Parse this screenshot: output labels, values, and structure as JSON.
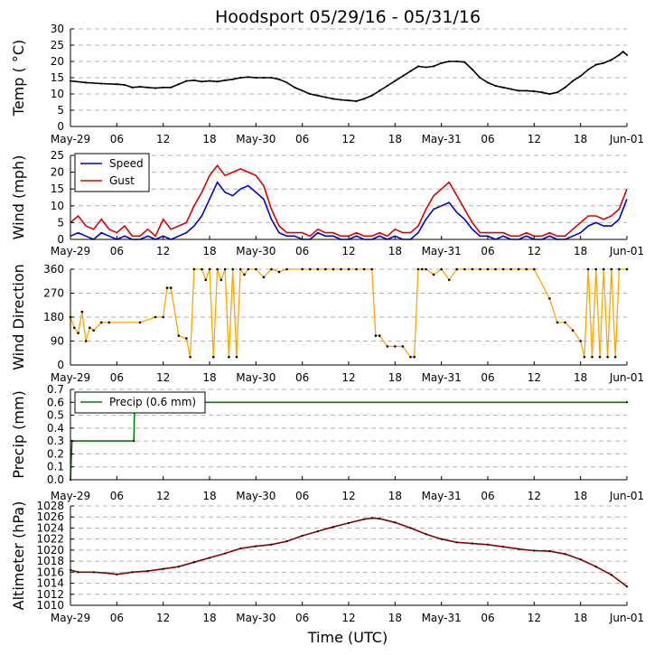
{
  "figure": {
    "title": "Hoodsport 05/29/16 - 05/31/16",
    "xlabel": "Time (UTC)"
  },
  "chart_data": [
    {
      "type": "line",
      "ylabel": "Temp ( °C)",
      "ylim": [
        0,
        30
      ],
      "yticks": [
        0,
        5,
        10,
        15,
        20,
        25,
        30
      ],
      "xlim": [
        0,
        72
      ],
      "x_tick_labels": [
        "May-29",
        "06",
        "12",
        "18",
        "May-30",
        "06",
        "12",
        "18",
        "May-31",
        "06",
        "12",
        "18",
        "Jun-01"
      ],
      "x_tick_hours": [
        0,
        6,
        12,
        18,
        24,
        30,
        36,
        42,
        48,
        54,
        60,
        66,
        72
      ],
      "grid": "horizontal dashed",
      "series": [
        {
          "color": "#000000",
          "marker": "dot",
          "x": [
            0,
            2,
            4,
            6,
            7,
            8,
            9,
            10,
            11,
            12,
            13,
            14,
            15,
            16,
            17,
            18,
            19,
            20,
            21,
            22,
            23,
            24,
            25,
            26,
            27,
            28,
            29,
            30,
            31,
            32,
            33,
            34,
            35,
            36,
            37,
            38,
            39,
            40,
            41,
            42,
            43,
            44,
            45,
            46,
            47,
            48,
            49,
            50,
            51,
            52,
            53,
            54,
            55,
            56,
            57,
            58,
            59,
            60,
            61,
            62,
            63,
            64,
            65,
            66,
            67,
            68,
            69,
            70,
            71,
            71.5,
            72
          ],
          "y": [
            14,
            13.5,
            13.2,
            13,
            12.8,
            12,
            12.2,
            12,
            11.8,
            12,
            12,
            13,
            14,
            14.2,
            13.8,
            14,
            13.8,
            14.2,
            14.5,
            15,
            15.2,
            15,
            15,
            15,
            14.5,
            13.5,
            12,
            11,
            10,
            9.5,
            9,
            8.5,
            8.2,
            8,
            7.8,
            8.5,
            9.5,
            11,
            12.5,
            14,
            15.5,
            17,
            18.5,
            18.2,
            18.5,
            19.5,
            20,
            20,
            19.8,
            17.5,
            15,
            13.5,
            12.5,
            12,
            11.5,
            11,
            11,
            10.8,
            10.5,
            10,
            10.5,
            12,
            14,
            15.5,
            17.5,
            19,
            19.5,
            20.5,
            22,
            23,
            22
          ]
        }
      ]
    },
    {
      "type": "line",
      "ylabel": "Wind (mph)",
      "ylim": [
        0,
        25
      ],
      "yticks": [
        0,
        5,
        10,
        15,
        20,
        25
      ],
      "xlim": [
        0,
        72
      ],
      "x_tick_labels": [
        "May-29",
        "06",
        "12",
        "18",
        "May-30",
        "06",
        "12",
        "18",
        "May-31",
        "06",
        "12",
        "18",
        "Jun-01"
      ],
      "x_tick_hours": [
        0,
        6,
        12,
        18,
        24,
        30,
        36,
        42,
        48,
        54,
        60,
        66,
        72
      ],
      "grid": "horizontal dashed",
      "legend": {
        "placement": "top-left",
        "entries": [
          {
            "label": "Speed",
            "color": "#0000cc"
          },
          {
            "label": "Gust",
            "color": "#dd0000"
          }
        ]
      },
      "series": [
        {
          "name": "Speed",
          "color": "#0000cc",
          "x": [
            0,
            1,
            2,
            3,
            4,
            5,
            6,
            7,
            8,
            9,
            10,
            11,
            12,
            13,
            14,
            15,
            16,
            17,
            18,
            19,
            20,
            21,
            22,
            23,
            24,
            25,
            26,
            27,
            28,
            29,
            30,
            31,
            32,
            33,
            34,
            35,
            36,
            37,
            38,
            39,
            40,
            41,
            42,
            43,
            44,
            45,
            46,
            47,
            48,
            49,
            50,
            51,
            52,
            53,
            54,
            55,
            56,
            57,
            58,
            59,
            60,
            61,
            62,
            63,
            64,
            65,
            66,
            67,
            68,
            69,
            70,
            71,
            72
          ],
          "y": [
            1,
            2,
            1,
            0,
            2,
            1,
            0,
            1,
            0,
            0,
            1,
            0,
            1,
            0,
            1,
            2,
            4,
            7,
            12,
            17,
            14,
            13,
            15,
            16,
            14,
            12,
            6,
            2,
            1,
            1,
            0,
            0,
            2,
            1,
            1,
            0,
            0,
            1,
            0,
            0,
            1,
            0,
            1,
            0,
            0,
            2,
            6,
            9,
            10,
            11,
            8,
            6,
            3,
            1,
            1,
            0,
            1,
            0,
            0,
            1,
            0,
            0,
            1,
            0,
            0,
            1,
            2,
            4,
            5,
            4,
            4,
            6,
            12
          ]
        },
        {
          "name": "Gust",
          "color": "#dd0000",
          "x": [
            0,
            1,
            2,
            3,
            4,
            5,
            6,
            7,
            8,
            9,
            10,
            11,
            12,
            13,
            14,
            15,
            16,
            17,
            18,
            19,
            20,
            21,
            22,
            23,
            24,
            25,
            26,
            27,
            28,
            29,
            30,
            31,
            32,
            33,
            34,
            35,
            36,
            37,
            38,
            39,
            40,
            41,
            42,
            43,
            44,
            45,
            46,
            47,
            48,
            49,
            50,
            51,
            52,
            53,
            54,
            55,
            56,
            57,
            58,
            59,
            60,
            61,
            62,
            63,
            64,
            65,
            66,
            67,
            68,
            69,
            70,
            71,
            72
          ],
          "y": [
            5,
            7,
            4,
            3,
            6,
            3,
            2,
            4,
            1,
            1,
            3,
            1,
            6,
            3,
            4,
            5,
            10,
            14,
            19,
            22,
            19,
            20,
            21,
            20,
            19,
            16,
            9,
            4,
            2,
            2,
            2,
            1,
            3,
            2,
            2,
            1,
            1,
            2,
            1,
            1,
            2,
            1,
            3,
            2,
            2,
            4,
            9,
            13,
            15,
            17,
            13,
            9,
            5,
            2,
            2,
            2,
            2,
            1,
            1,
            2,
            1,
            1,
            2,
            1,
            1,
            3,
            5,
            7,
            7,
            6,
            7,
            9,
            15
          ]
        }
      ]
    },
    {
      "type": "scatter",
      "ylabel": "Wind Direction",
      "ylim": [
        0,
        360
      ],
      "yticks": [
        0,
        90,
        180,
        270,
        360
      ],
      "xlim": [
        0,
        72
      ],
      "x_tick_labels": [
        "May-29",
        "06",
        "12",
        "18",
        "May-30",
        "06",
        "12",
        "18",
        "May-31",
        "06",
        "12",
        "18",
        "Jun-01"
      ],
      "x_tick_hours": [
        0,
        6,
        12,
        18,
        24,
        30,
        36,
        42,
        48,
        54,
        60,
        66,
        72
      ],
      "grid": "horizontal dashed",
      "series": [
        {
          "color": "#ffa500",
          "marker": "dot",
          "connected": true,
          "x": [
            0,
            0.5,
            1,
            1.5,
            2,
            2.5,
            3,
            4,
            5,
            9,
            11,
            12,
            12.5,
            13,
            14,
            15,
            15.5,
            16,
            17,
            17.5,
            18,
            18.5,
            19,
            19.5,
            20,
            20.5,
            21,
            21.5,
            22,
            22.5,
            23,
            24,
            25,
            26,
            27,
            28,
            30,
            31,
            32,
            33,
            34,
            35,
            36,
            37,
            38,
            39,
            39.5,
            40,
            41,
            42,
            43,
            44,
            44.5,
            45,
            45.5,
            46,
            47,
            48,
            49,
            50,
            51,
            52,
            53,
            54,
            55,
            56,
            57,
            58,
            59,
            60,
            62,
            63,
            64,
            65,
            66,
            66.5,
            67,
            67.5,
            68,
            68.5,
            69,
            69.5,
            70,
            70.5,
            71,
            72
          ],
          "y": [
            180,
            140,
            120,
            200,
            90,
            140,
            130,
            160,
            160,
            160,
            180,
            180,
            290,
            290,
            110,
            100,
            30,
            360,
            360,
            320,
            360,
            30,
            360,
            320,
            360,
            30,
            360,
            30,
            360,
            340,
            360,
            360,
            330,
            360,
            350,
            360,
            360,
            360,
            360,
            360,
            360,
            360,
            360,
            360,
            360,
            360,
            110,
            110,
            70,
            70,
            70,
            30,
            30,
            360,
            360,
            360,
            340,
            360,
            320,
            360,
            360,
            360,
            360,
            360,
            360,
            360,
            360,
            360,
            360,
            360,
            250,
            160,
            160,
            130,
            90,
            30,
            360,
            30,
            360,
            30,
            360,
            30,
            360,
            30,
            360,
            360
          ]
        }
      ]
    },
    {
      "type": "line",
      "ylabel": "Precip (mm)",
      "ylim": [
        0,
        0.7
      ],
      "yticks": [
        0.0,
        0.1,
        0.2,
        0.3,
        0.4,
        0.5,
        0.6,
        0.7
      ],
      "xlim": [
        0,
        72
      ],
      "x_tick_labels": [
        "May-29",
        "06",
        "12",
        "18",
        "May-30",
        "06",
        "12",
        "18",
        "May-31",
        "06",
        "12",
        "18",
        "Jun-01"
      ],
      "x_tick_hours": [
        0,
        6,
        12,
        18,
        24,
        30,
        36,
        42,
        48,
        54,
        60,
        66,
        72
      ],
      "grid": "horizontal dashed",
      "legend": {
        "placement": "top-left",
        "entries": [
          {
            "label": "Precip (0.6 mm)",
            "color": "#008000"
          }
        ]
      },
      "series": [
        {
          "name": "Precip (0.6 mm)",
          "color": "#008000",
          "marker": "dot",
          "x": [
            0,
            0.2,
            8.2,
            8.3,
            72
          ],
          "y": [
            0,
            0.3,
            0.3,
            0.6,
            0.6
          ]
        }
      ]
    },
    {
      "type": "line",
      "ylabel": "Altimeter (hPa)",
      "ylim": [
        1010,
        1028
      ],
      "yticks": [
        1010,
        1012,
        1014,
        1016,
        1018,
        1020,
        1022,
        1024,
        1026,
        1028
      ],
      "xlim": [
        0,
        72
      ],
      "x_tick_labels": [
        "May-29",
        "06",
        "12",
        "18",
        "May-30",
        "06",
        "12",
        "18",
        "May-31",
        "06",
        "12",
        "18",
        "Jun-01"
      ],
      "x_tick_hours": [
        0,
        6,
        12,
        18,
        24,
        30,
        36,
        42,
        48,
        54,
        60,
        66,
        72
      ],
      "grid": "horizontal dashed",
      "series": [
        {
          "color": "#8b0000",
          "marker": "dot",
          "x": [
            0,
            1,
            3,
            5,
            6,
            8,
            10,
            12,
            14,
            16,
            18,
            20,
            22,
            24,
            26,
            28,
            30,
            32,
            34,
            36,
            38,
            39,
            40,
            42,
            44,
            46,
            48,
            50,
            52,
            54,
            56,
            58,
            60,
            62,
            64,
            66,
            68,
            70,
            72
          ],
          "y": [
            1016.4,
            1016,
            1016,
            1015.8,
            1015.6,
            1016,
            1016.2,
            1016.6,
            1017,
            1017.8,
            1018.6,
            1019.4,
            1020.3,
            1020.7,
            1021,
            1021.6,
            1022.6,
            1023.4,
            1024.2,
            1024.9,
            1025.6,
            1025.8,
            1025.7,
            1025,
            1024,
            1022.9,
            1022,
            1021.4,
            1021.2,
            1021,
            1020.6,
            1020.2,
            1019.9,
            1019.8,
            1019.3,
            1018.3,
            1017,
            1015.5,
            1013.4
          ]
        }
      ]
    }
  ]
}
